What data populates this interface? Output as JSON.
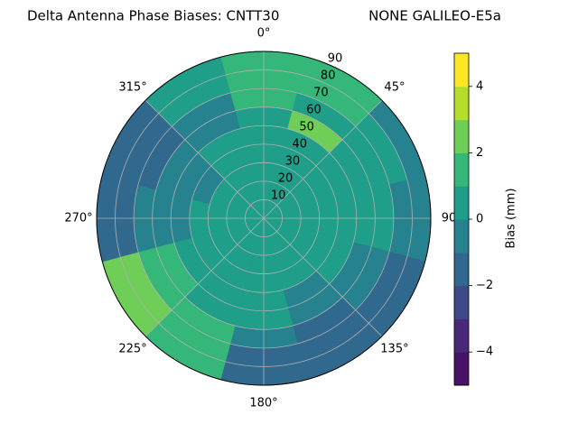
{
  "chart_data": {
    "type": "polar-contour",
    "title": "Delta Antenna Phase Biases: CNTT30",
    "subtitle": "NONE GALILEO-E5a",
    "colorbar_label": "Bias (mm)",
    "rlim": [
      0,
      90
    ],
    "rticks": [
      10,
      20,
      30,
      40,
      50,
      60,
      70,
      80,
      90
    ],
    "thetaticks": [
      {
        "value": 0,
        "label": "0°"
      },
      {
        "value": 45,
        "label": "45°"
      },
      {
        "value": 90,
        "label": "90"
      },
      {
        "value": 135,
        "label": "135°"
      },
      {
        "value": 180,
        "label": "180°"
      },
      {
        "value": 225,
        "label": "225°"
      },
      {
        "value": 270,
        "label": "270°"
      },
      {
        "value": 315,
        "label": "315°"
      }
    ],
    "grid": true,
    "levels": [
      -5,
      -4,
      -3,
      -2,
      -1,
      0,
      1,
      2,
      3,
      4,
      5
    ],
    "colors": [
      "#471365",
      "#482878",
      "#3e4989",
      "#31688e",
      "#26828e",
      "#1f9e89",
      "#35b779",
      "#6ece58",
      "#b5de2b",
      "#fde725"
    ],
    "cticks": [
      {
        "value": -4,
        "label": "−4"
      },
      {
        "value": -2,
        "label": "−2"
      },
      0,
      2,
      4
    ],
    "field": {
      "azimuth": [
        0,
        30,
        60,
        90,
        120,
        150,
        180,
        210,
        240,
        270,
        300,
        330
      ],
      "zenith": [
        5,
        15,
        25,
        35,
        45,
        55,
        65,
        75,
        85
      ],
      "values": [
        [
          0.5,
          0.5,
          0.5,
          0.5,
          0.5,
          0.5,
          1.5,
          1.5,
          1.5
        ],
        [
          0.5,
          0.5,
          0.5,
          0.5,
          0.5,
          2.5,
          0.5,
          1.5,
          1.5
        ],
        [
          0.5,
          0.5,
          0.5,
          0.5,
          0.5,
          0.5,
          0.5,
          0.5,
          -0.5
        ],
        [
          0.5,
          0.5,
          0.5,
          0.5,
          0.5,
          0.5,
          0.5,
          -0.5,
          -0.5
        ],
        [
          0.5,
          0.5,
          0.5,
          0.5,
          0.5,
          -0.5,
          -0.5,
          -1.5,
          -1.5
        ],
        [
          0.5,
          0.5,
          0.5,
          0.5,
          -0.5,
          -0.5,
          -1.5,
          -1.5,
          -1.5
        ],
        [
          0.5,
          0.5,
          0.5,
          0.5,
          0.5,
          0.5,
          -0.5,
          -1.5,
          -1.5
        ],
        [
          0.5,
          0.5,
          0.5,
          0.5,
          0.5,
          0.5,
          1.5,
          1.5,
          1.5
        ],
        [
          0.5,
          0.5,
          0.5,
          0.5,
          0.5,
          1.5,
          1.5,
          2.5,
          2.5
        ],
        [
          0.5,
          0.5,
          0.5,
          0.5,
          -0.5,
          -0.5,
          -0.5,
          -1.5,
          -1.5
        ],
        [
          0.5,
          0.5,
          0.5,
          -0.5,
          -0.5,
          -0.5,
          -1.5,
          -1.5,
          -1.5
        ],
        [
          0.5,
          0.5,
          0.5,
          0.5,
          0.5,
          -0.5,
          -0.5,
          0.5,
          0.5
        ]
      ]
    }
  }
}
